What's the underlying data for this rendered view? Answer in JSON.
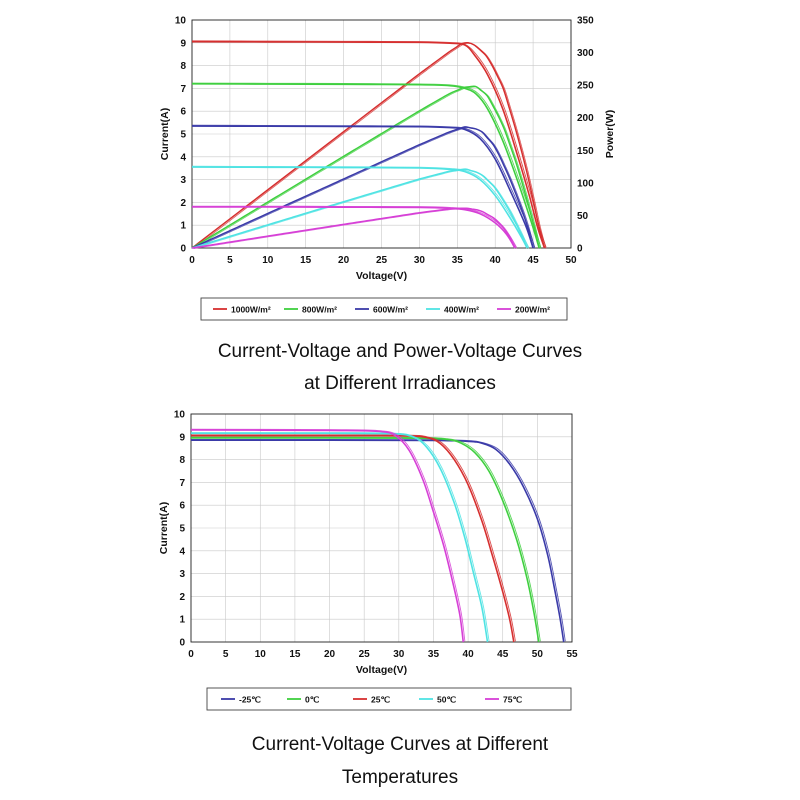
{
  "chart_data": [
    {
      "type": "line",
      "xlabel": "Voltage(V)",
      "ylabel": "Current(A)",
      "y2label": "Power(W)",
      "xlim": [
        0,
        50
      ],
      "ylim": [
        0,
        10
      ],
      "y2lim": [
        0,
        350
      ],
      "xticks": [
        "0",
        "5",
        "10",
        "15",
        "20",
        "25",
        "30",
        "35",
        "40",
        "45",
        "50"
      ],
      "yticks": [
        "0",
        "1",
        "2",
        "3",
        "4",
        "5",
        "6",
        "7",
        "8",
        "9",
        "10"
      ],
      "y2ticks": [
        "0",
        "50",
        "100",
        "150",
        "200",
        "250",
        "300",
        "350"
      ],
      "grid": true,
      "legend_position": "bottom",
      "series": [
        {
          "name": "1000W/m²",
          "color": "#d62f2f",
          "isc": 9.05,
          "voc": 46.5,
          "vmp": 37.3,
          "pmax": 315,
          "points": [
            [
              0,
              9.05
            ],
            [
              10,
              9.04
            ],
            [
              20,
              9.03
            ],
            [
              30,
              9.02
            ],
            [
              34,
              8.98
            ],
            [
              36,
              8.9
            ],
            [
              37.3,
              8.45
            ],
            [
              39,
              7.6
            ],
            [
              41,
              6.1
            ],
            [
              43,
              4.0
            ],
            [
              44.5,
              2.3
            ],
            [
              45.6,
              0.9
            ],
            [
              46.5,
              0
            ]
          ]
        },
        {
          "name": "800W/m²",
          "color": "#3fcf3f",
          "isc": 7.2,
          "voc": 45.8,
          "vmp": 36.5,
          "pmax": 248,
          "points": [
            [
              0,
              7.2
            ],
            [
              10,
              7.19
            ],
            [
              20,
              7.18
            ],
            [
              30,
              7.16
            ],
            [
              34,
              7.12
            ],
            [
              36,
              7.0
            ],
            [
              37.5,
              6.75
            ],
            [
              39,
              6.1
            ],
            [
              41,
              4.7
            ],
            [
              43,
              2.9
            ],
            [
              44.8,
              1.1
            ],
            [
              45.8,
              0
            ]
          ]
        },
        {
          "name": "600W/m²",
          "color": "#3a3aa8",
          "isc": 5.35,
          "voc": 45.0,
          "vmp": 35.8,
          "pmax": 186,
          "points": [
            [
              0,
              5.35
            ],
            [
              10,
              5.34
            ],
            [
              20,
              5.33
            ],
            [
              30,
              5.32
            ],
            [
              34,
              5.28
            ],
            [
              36,
              5.2
            ],
            [
              38,
              4.8
            ],
            [
              40,
              3.9
            ],
            [
              42,
              2.5
            ],
            [
              44,
              1.0
            ],
            [
              45.0,
              0
            ]
          ]
        },
        {
          "name": "400W/m²",
          "color": "#4fe3e3",
          "isc": 3.55,
          "voc": 44.2,
          "vmp": 35.0,
          "pmax": 121,
          "points": [
            [
              0,
              3.55
            ],
            [
              10,
              3.54
            ],
            [
              20,
              3.53
            ],
            [
              30,
              3.51
            ],
            [
              34,
              3.45
            ],
            [
              36,
              3.35
            ],
            [
              38,
              3.0
            ],
            [
              40,
              2.3
            ],
            [
              42,
              1.3
            ],
            [
              43.5,
              0.45
            ],
            [
              44.2,
              0
            ]
          ]
        },
        {
          "name": "200W/m²",
          "color": "#d63fd6",
          "isc": 1.8,
          "voc": 42.6,
          "vmp": 35.2,
          "pmax": 61,
          "points": [
            [
              0,
              1.8
            ],
            [
              10,
              1.8
            ],
            [
              20,
              1.79
            ],
            [
              30,
              1.78
            ],
            [
              34,
              1.74
            ],
            [
              36,
              1.68
            ],
            [
              38,
              1.5
            ],
            [
              40,
              1.1
            ],
            [
              41.5,
              0.6
            ],
            [
              42.6,
              0
            ]
          ]
        }
      ]
    },
    {
      "type": "line",
      "xlabel": "Voltage(V)",
      "ylabel": "Current(A)",
      "xlim": [
        0,
        55
      ],
      "ylim": [
        0,
        10
      ],
      "xticks": [
        "0",
        "5",
        "10",
        "15",
        "20",
        "25",
        "30",
        "35",
        "40",
        "45",
        "50",
        "55"
      ],
      "yticks": [
        "0",
        "1",
        "2",
        "3",
        "4",
        "5",
        "6",
        "7",
        "8",
        "9",
        "10"
      ],
      "grid": true,
      "legend_position": "bottom",
      "series": [
        {
          "name": "-25℃",
          "color": "#3a3aa8",
          "points": [
            [
              0,
              8.85
            ],
            [
              20,
              8.85
            ],
            [
              35,
              8.84
            ],
            [
              40,
              8.8
            ],
            [
              42,
              8.72
            ],
            [
              44,
              8.45
            ],
            [
              46,
              7.8
            ],
            [
              48,
              6.8
            ],
            [
              50,
              5.4
            ],
            [
              51.5,
              3.8
            ],
            [
              52.5,
              2.3
            ],
            [
              53.3,
              1.0
            ],
            [
              53.8,
              0
            ]
          ]
        },
        {
          "name": "0℃",
          "color": "#3fcf3f",
          "points": [
            [
              0,
              8.95
            ],
            [
              20,
              8.95
            ],
            [
              33,
              8.94
            ],
            [
              37,
              8.88
            ],
            [
              39,
              8.72
            ],
            [
              41,
              8.3
            ],
            [
              43,
              7.5
            ],
            [
              45,
              6.2
            ],
            [
              47,
              4.5
            ],
            [
              48.5,
              2.8
            ],
            [
              49.5,
              1.3
            ],
            [
              50.2,
              0
            ]
          ]
        },
        {
          "name": "25℃",
          "color": "#d62f2f",
          "points": [
            [
              0,
              9.05
            ],
            [
              20,
              9.05
            ],
            [
              31,
              9.04
            ],
            [
              34,
              8.97
            ],
            [
              36,
              8.7
            ],
            [
              38,
              8.0
            ],
            [
              40,
              6.9
            ],
            [
              42,
              5.3
            ],
            [
              43.5,
              3.8
            ],
            [
              45,
              2.2
            ],
            [
              46,
              1.0
            ],
            [
              46.6,
              0
            ]
          ]
        },
        {
          "name": "50℃",
          "color": "#4fe3e3",
          "points": [
            [
              0,
              9.15
            ],
            [
              20,
              9.15
            ],
            [
              29,
              9.13
            ],
            [
              32,
              9.0
            ],
            [
              34,
              8.55
            ],
            [
              36,
              7.6
            ],
            [
              38,
              6.1
            ],
            [
              39.5,
              4.6
            ],
            [
              40.8,
              3.0
            ],
            [
              42,
              1.5
            ],
            [
              42.8,
              0
            ]
          ]
        },
        {
          "name": "75℃",
          "color": "#d63fd6",
          "points": [
            [
              0,
              9.3
            ],
            [
              20,
              9.28
            ],
            [
              27,
              9.24
            ],
            [
              29.5,
              9.05
            ],
            [
              31.5,
              8.4
            ],
            [
              33.5,
              7.1
            ],
            [
              35,
              5.7
            ],
            [
              36.5,
              4.2
            ],
            [
              37.8,
              2.6
            ],
            [
              38.8,
              1.2
            ],
            [
              39.3,
              0
            ]
          ]
        }
      ]
    }
  ],
  "captions": {
    "chart1": [
      "Current-Voltage and Power-Voltage Curves",
      "at Different Irradiances"
    ],
    "chart2": [
      "Current-Voltage Curves at Different",
      "Temperatures"
    ]
  }
}
